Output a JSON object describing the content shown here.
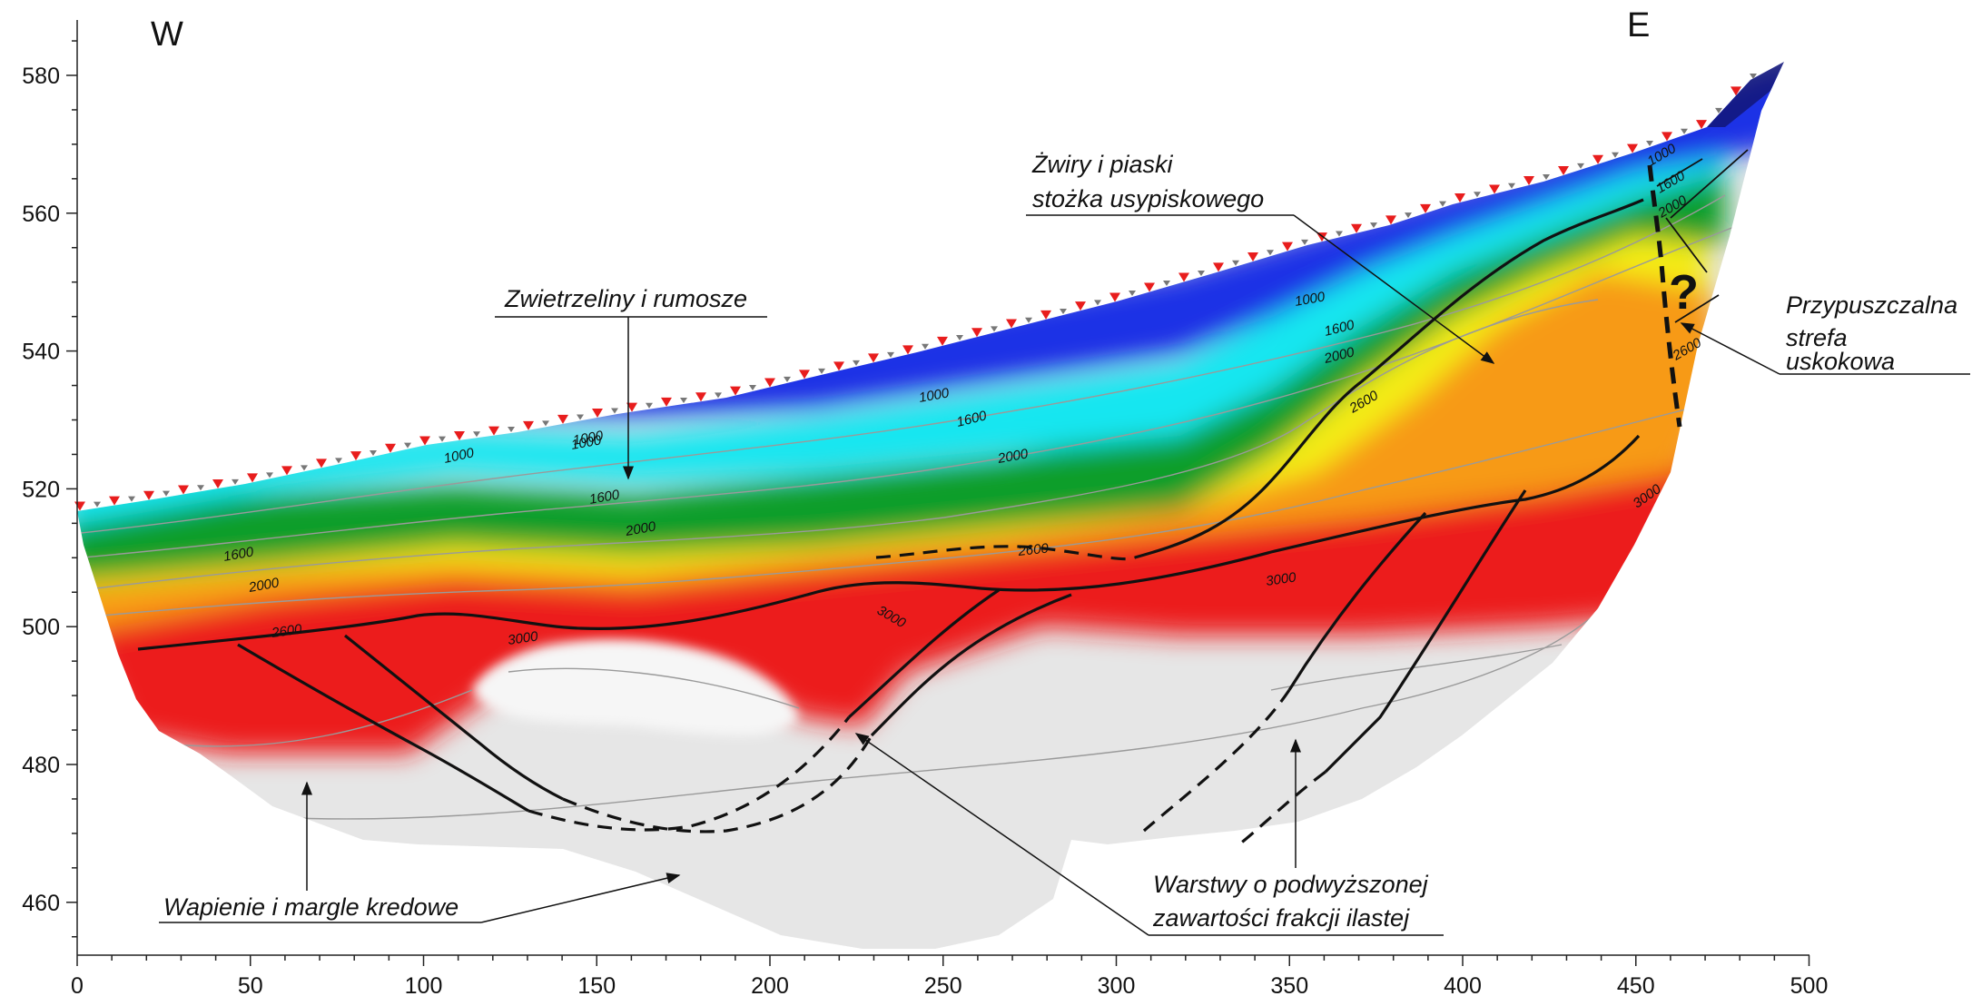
{
  "directions": {
    "west": "W",
    "east": "E"
  },
  "axes": {
    "x_ticks": [
      "0",
      "50",
      "100",
      "150",
      "200",
      "250",
      "300",
      "350",
      "400",
      "450",
      "500"
    ],
    "y_ticks": [
      "460",
      "480",
      "500",
      "520",
      "540",
      "560",
      "580"
    ]
  },
  "annotations": {
    "weathered": "Zwietrzeliny i rumosze",
    "gravels_line1": "Żwiry i piaski",
    "gravels_line2": "stożka usypiskowego",
    "fault_line1": "Przypuszczalna",
    "fault_line2": "strefa",
    "fault_line3": "uskokowa",
    "fault_question": "?",
    "limestone": "Wapienie i margle kredowe",
    "clay_line1": "Warstwy o podwyższonej",
    "clay_line2": "zawartości frakcji ilastej"
  },
  "isoline_labels": [
    "1000",
    "1000",
    "1600",
    "1600",
    "2000",
    "2000",
    "2600",
    "3000",
    "1000",
    "1600",
    "2000",
    "2600",
    "3000",
    "1000",
    "1600",
    "2000",
    "2600",
    "3000",
    "1000",
    "1600",
    "2000",
    "2600",
    "3000",
    "1000"
  ],
  "colors": {
    "blue": "#1d33e6",
    "cyan": "#15e6f0",
    "green": "#0a9e2a",
    "yellow": "#f4ec12",
    "orange": "#f79a14",
    "red": "#ec1c1c",
    "grey": "#e2e2e2",
    "electrode_red": "#e81d1d"
  }
}
